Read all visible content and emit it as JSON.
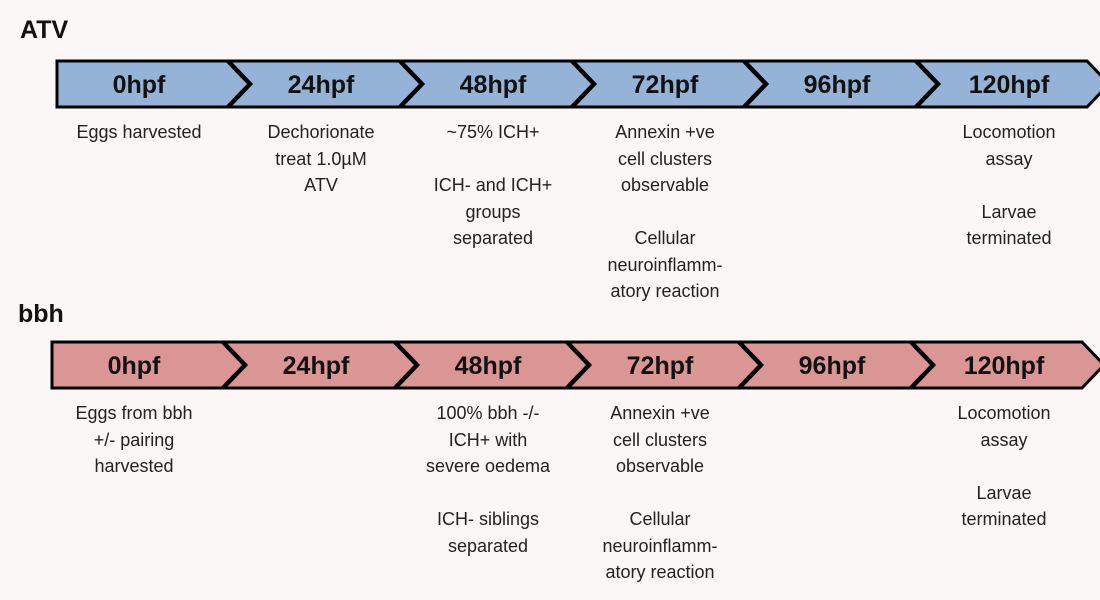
{
  "rows": [
    {
      "title": "ATV",
      "color": "#95b3d7",
      "stages": [
        {
          "label": "0hpf",
          "note": "Eggs harvested"
        },
        {
          "label": "24hpf",
          "note": "Dechorionate\ntreat 1.0µM\nATV"
        },
        {
          "label": "48hpf",
          "note": "~75% ICH+\n\nICH- and ICH+\ngroups\nseparated"
        },
        {
          "label": "72hpf",
          "note": "Annexin +ve\ncell clusters\nobservable\n\nCellular\nneuroinflamm-\natory reaction"
        },
        {
          "label": "96hpf",
          "note": ""
        },
        {
          "label": "120hpf",
          "note": "Locomotion\nassay\n\nLarvae\nterminated"
        }
      ]
    },
    {
      "title": "bbh",
      "color": "#d99694",
      "stages": [
        {
          "label": "0hpf",
          "note": "Eggs from bbh\n+/- pairing\nharvested"
        },
        {
          "label": "24hpf",
          "note": ""
        },
        {
          "label": "48hpf",
          "note": "100% bbh -/-\nICH+ with\nsevere oedema\n\nICH- siblings\nseparated"
        },
        {
          "label": "72hpf",
          "note": "Annexin +ve\ncell clusters\nobservable\n\nCellular\nneuroinflamm-\natory reaction"
        },
        {
          "label": "96hpf",
          "note": ""
        },
        {
          "label": "120hpf",
          "note": "Locomotion\nassay\n\nLarvae\nterminated"
        }
      ]
    }
  ]
}
